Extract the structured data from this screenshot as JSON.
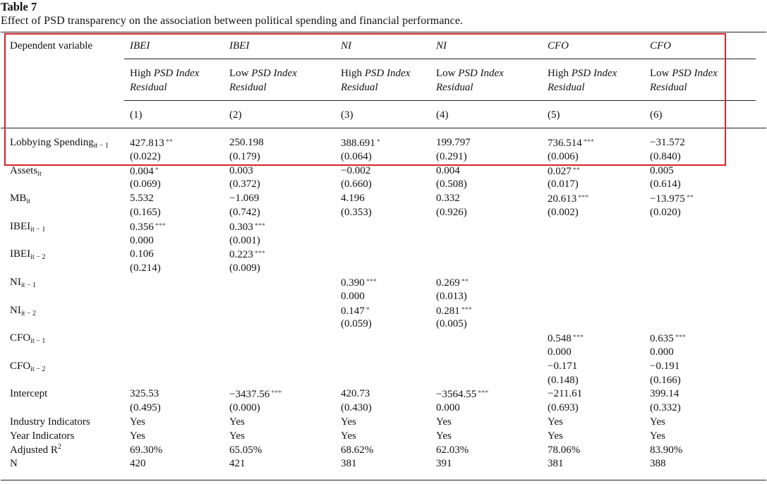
{
  "table": {
    "label": "Table 7",
    "caption": "Effect of PSD transparency on the association between political spending and financial performance.",
    "header": {
      "depvar_label": "Dependent variable",
      "dep_vars": [
        "IBEI",
        "IBEI",
        "NI",
        "NI",
        "CFO",
        "CFO"
      ],
      "groups": [
        {
          "prefix": "High ",
          "index": "PSD Index",
          "residual": "Residual"
        },
        {
          "prefix": "Low ",
          "index": "PSD Index",
          "residual": "Residual"
        },
        {
          "prefix": "High ",
          "index": "PSD Index",
          "residual": "Residual"
        },
        {
          "prefix": "Low ",
          "index": "PSD Index",
          "residual": "Residual"
        },
        {
          "prefix": "High ",
          "index": "PSD Index",
          "residual": "Residual"
        },
        {
          "prefix": "Low ",
          "index": "PSD Index",
          "residual": "Residual"
        }
      ],
      "col_numbers": [
        "(1)",
        "(2)",
        "(3)",
        "(4)",
        "(5)",
        "(6)"
      ]
    },
    "rows": [
      {
        "base": "Lobbying Spending",
        "sub": "it − 1",
        "cells": [
          [
            "427.813",
            "**"
          ],
          [
            "250.198",
            ""
          ],
          [
            "388.691",
            "*"
          ],
          [
            "199.797",
            ""
          ],
          [
            "736.514",
            "***"
          ],
          [
            "−31.572",
            ""
          ]
        ]
      },
      {
        "base": "",
        "sub": "",
        "cells": [
          [
            "(0.022)",
            ""
          ],
          [
            "(0.179)",
            ""
          ],
          [
            "(0.064)",
            ""
          ],
          [
            "(0.291)",
            ""
          ],
          [
            "(0.006)",
            ""
          ],
          [
            "(0.840)",
            ""
          ]
        ]
      },
      {
        "base": "Assets",
        "sub": "it",
        "cells": [
          [
            "0.004",
            "*"
          ],
          [
            "0.003",
            ""
          ],
          [
            "−0.002",
            ""
          ],
          [
            "0.004",
            ""
          ],
          [
            "0.027",
            "**"
          ],
          [
            "0.005",
            ""
          ]
        ]
      },
      {
        "base": "",
        "sub": "",
        "cells": [
          [
            "(0.069)",
            ""
          ],
          [
            "(0.372)",
            ""
          ],
          [
            "(0.660)",
            ""
          ],
          [
            "(0.508)",
            ""
          ],
          [
            "(0.017)",
            ""
          ],
          [
            "(0.614)",
            ""
          ]
        ]
      },
      {
        "base": "MB",
        "sub": "it",
        "cells": [
          [
            "5.532",
            ""
          ],
          [
            "−1.069",
            ""
          ],
          [
            "4.196",
            ""
          ],
          [
            "0.332",
            ""
          ],
          [
            "20.613",
            "***"
          ],
          [
            "−13.975",
            "**"
          ]
        ]
      },
      {
        "base": "",
        "sub": "",
        "cells": [
          [
            "(0.165)",
            ""
          ],
          [
            "(0.742)",
            ""
          ],
          [
            "(0.353)",
            ""
          ],
          [
            "(0.926)",
            ""
          ],
          [
            "(0.002)",
            ""
          ],
          [
            "(0.020)",
            ""
          ]
        ]
      },
      {
        "base": "IBEI",
        "sub": "it − 1",
        "cells": [
          [
            "0.356",
            "***"
          ],
          [
            "0.303",
            "***"
          ],
          [
            "",
            ""
          ],
          [
            "",
            ""
          ],
          [
            "",
            ""
          ],
          [
            "",
            ""
          ]
        ]
      },
      {
        "base": "",
        "sub": "",
        "cells": [
          [
            "0.000",
            ""
          ],
          [
            "(0.001)",
            ""
          ],
          [
            "",
            ""
          ],
          [
            "",
            ""
          ],
          [
            "",
            ""
          ],
          [
            "",
            ""
          ]
        ]
      },
      {
        "base": "IBEI",
        "sub": "it − 2",
        "cells": [
          [
            "0.106",
            ""
          ],
          [
            "0.223",
            "***"
          ],
          [
            "",
            ""
          ],
          [
            "",
            ""
          ],
          [
            "",
            ""
          ],
          [
            "",
            ""
          ]
        ]
      },
      {
        "base": "",
        "sub": "",
        "cells": [
          [
            "(0.214)",
            ""
          ],
          [
            "(0.009)",
            ""
          ],
          [
            "",
            ""
          ],
          [
            "",
            ""
          ],
          [
            "",
            ""
          ],
          [
            "",
            ""
          ]
        ]
      },
      {
        "base": "NI",
        "sub": "it − 1",
        "cells": [
          [
            "",
            ""
          ],
          [
            "",
            ""
          ],
          [
            "0.390",
            "***"
          ],
          [
            "0.269",
            "**"
          ],
          [
            "",
            ""
          ],
          [
            "",
            ""
          ]
        ]
      },
      {
        "base": "",
        "sub": "",
        "cells": [
          [
            "",
            ""
          ],
          [
            "",
            ""
          ],
          [
            "0.000",
            ""
          ],
          [
            "(0.013)",
            ""
          ],
          [
            "",
            ""
          ],
          [
            "",
            ""
          ]
        ]
      },
      {
        "base": "NI",
        "sub": "it − 2",
        "cells": [
          [
            "",
            ""
          ],
          [
            "",
            ""
          ],
          [
            "0.147",
            "*"
          ],
          [
            "0.281",
            "***"
          ],
          [
            "",
            ""
          ],
          [
            "",
            ""
          ]
        ]
      },
      {
        "base": "",
        "sub": "",
        "cells": [
          [
            "",
            ""
          ],
          [
            "",
            ""
          ],
          [
            "(0.059)",
            ""
          ],
          [
            "(0.005)",
            ""
          ],
          [
            "",
            ""
          ],
          [
            "",
            ""
          ]
        ]
      },
      {
        "base": "CFO",
        "sub": "it − 1",
        "cells": [
          [
            "",
            ""
          ],
          [
            "",
            ""
          ],
          [
            "",
            ""
          ],
          [
            "",
            ""
          ],
          [
            "0.548",
            "***"
          ],
          [
            "0.635",
            "***"
          ]
        ]
      },
      {
        "base": "",
        "sub": "",
        "cells": [
          [
            "",
            ""
          ],
          [
            "",
            ""
          ],
          [
            "",
            ""
          ],
          [
            "",
            ""
          ],
          [
            "0.000",
            ""
          ],
          [
            "0.000",
            ""
          ]
        ]
      },
      {
        "base": "CFO",
        "sub": "it − 2",
        "cells": [
          [
            "",
            ""
          ],
          [
            "",
            ""
          ],
          [
            "",
            ""
          ],
          [
            "",
            ""
          ],
          [
            "−0.171",
            ""
          ],
          [
            "−0.191",
            ""
          ]
        ]
      },
      {
        "base": "",
        "sub": "",
        "cells": [
          [
            "",
            ""
          ],
          [
            "",
            ""
          ],
          [
            "",
            ""
          ],
          [
            "",
            ""
          ],
          [
            "(0.148)",
            ""
          ],
          [
            "(0.166)",
            ""
          ]
        ]
      },
      {
        "base": "Intercept",
        "sub": "",
        "cells": [
          [
            "325.53",
            ""
          ],
          [
            "−3437.56",
            "***"
          ],
          [
            "420.73",
            ""
          ],
          [
            "−3564.55",
            "***"
          ],
          [
            "−211.61",
            ""
          ],
          [
            "399.14",
            ""
          ]
        ]
      },
      {
        "base": "",
        "sub": "",
        "cells": [
          [
            "(0.495)",
            ""
          ],
          [
            "(0.000)",
            ""
          ],
          [
            "(0.430)",
            ""
          ],
          [
            "0.000",
            ""
          ],
          [
            "(0.693)",
            ""
          ],
          [
            "(0.332)",
            ""
          ]
        ]
      },
      {
        "base": "Industry Indicators",
        "sub": "",
        "cells": [
          [
            "Yes",
            ""
          ],
          [
            "Yes",
            ""
          ],
          [
            "Yes",
            ""
          ],
          [
            "Yes",
            ""
          ],
          [
            "Yes",
            ""
          ],
          [
            "Yes",
            ""
          ]
        ]
      },
      {
        "base": "Year Indicators",
        "sub": "",
        "cells": [
          [
            "Yes",
            ""
          ],
          [
            "Yes",
            ""
          ],
          [
            "Yes",
            ""
          ],
          [
            "Yes",
            ""
          ],
          [
            "Yes",
            ""
          ],
          [
            "Yes",
            ""
          ]
        ]
      },
      {
        "base": "Adjusted R",
        "sup": "2",
        "cells": [
          [
            "69.30%",
            ""
          ],
          [
            "65.05%",
            ""
          ],
          [
            "68.62%",
            ""
          ],
          [
            "62.03%",
            ""
          ],
          [
            "78.06%",
            ""
          ],
          [
            "83.90%",
            ""
          ]
        ]
      },
      {
        "base": "N",
        "sub": "",
        "cells": [
          [
            "420",
            ""
          ],
          [
            "421",
            ""
          ],
          [
            "381",
            ""
          ],
          [
            "391",
            ""
          ],
          [
            "381",
            ""
          ],
          [
            "388",
            ""
          ]
        ]
      }
    ]
  },
  "colors": {
    "highlight_box": "#d8222a",
    "rule": "#222222"
  }
}
